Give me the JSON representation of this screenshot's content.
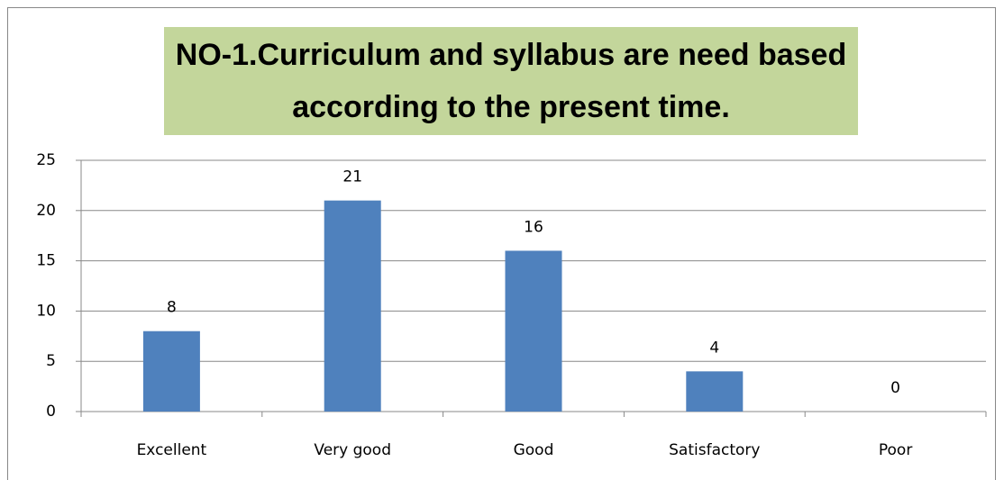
{
  "chart_data": {
    "type": "bar",
    "title": "NO-1.Curriculum and syllabus are need based according to the present time.",
    "categories": [
      "Excellent",
      "Very good",
      "Good",
      "Satisfactory",
      "Poor"
    ],
    "values": [
      8,
      21,
      16,
      4,
      0
    ],
    "color": "#4f81bd",
    "ylim": [
      0,
      25
    ],
    "yticks": [
      0,
      5,
      10,
      15,
      20,
      25
    ],
    "grid": true
  }
}
